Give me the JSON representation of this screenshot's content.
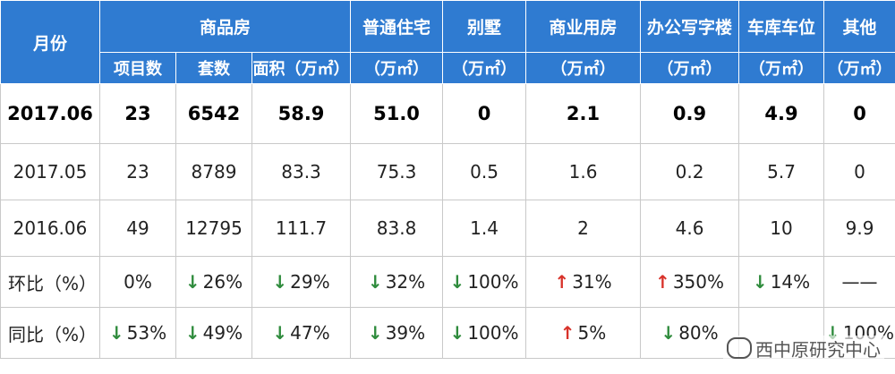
{
  "headers": {
    "month": "月份",
    "commercial_housing": "商品房",
    "ordinary_residence": "普通住宅",
    "villa": "别墅",
    "commercial": "商业用房",
    "office": "办公写字楼",
    "garage": "车库车位",
    "other": "其他",
    "projects": "项目数",
    "units": "套数",
    "area": "面积（万㎡）",
    "unit_wan": "（万㎡）"
  },
  "rows": [
    {
      "month": "2017.06",
      "projects": "23",
      "units": "6542",
      "area": "58.9",
      "ordinary": "51.0",
      "villa": "0",
      "commercial": "2.1",
      "office": "0.9",
      "garage": "4.9",
      "other": "0"
    },
    {
      "month": "2017.05",
      "projects": "23",
      "units": "8789",
      "area": "83.3",
      "ordinary": "75.3",
      "villa": "0.5",
      "commercial": "1.6",
      "office": "0.2",
      "garage": "5.7",
      "other": "0"
    },
    {
      "month": "2016.06",
      "projects": "49",
      "units": "12795",
      "area": "111.7",
      "ordinary": "83.8",
      "villa": "1.4",
      "commercial": "2",
      "office": "4.6",
      "garage": "10",
      "other": "9.9"
    }
  ],
  "mom": {
    "label": "环比（%）",
    "projects": "0%",
    "units": "26%",
    "area": "29%",
    "ordinary": "32%",
    "villa": "100%",
    "commercial": "31%",
    "office": "350%",
    "garage": "14%",
    "other": "——"
  },
  "yoy": {
    "label": "同比（%）",
    "projects": "53%",
    "units": "49%",
    "area": "47%",
    "ordinary": "39%",
    "villa": "100%",
    "commercial": "5%",
    "office": "80%",
    "garage": "",
    "other": "100%"
  },
  "arrows": {
    "down": "↓",
    "up": "↑"
  },
  "watermark": "西中原研究中心",
  "colors": {
    "header_bg": "#2f7bd1",
    "down": "#2e8b3c",
    "up": "#d8322a"
  }
}
